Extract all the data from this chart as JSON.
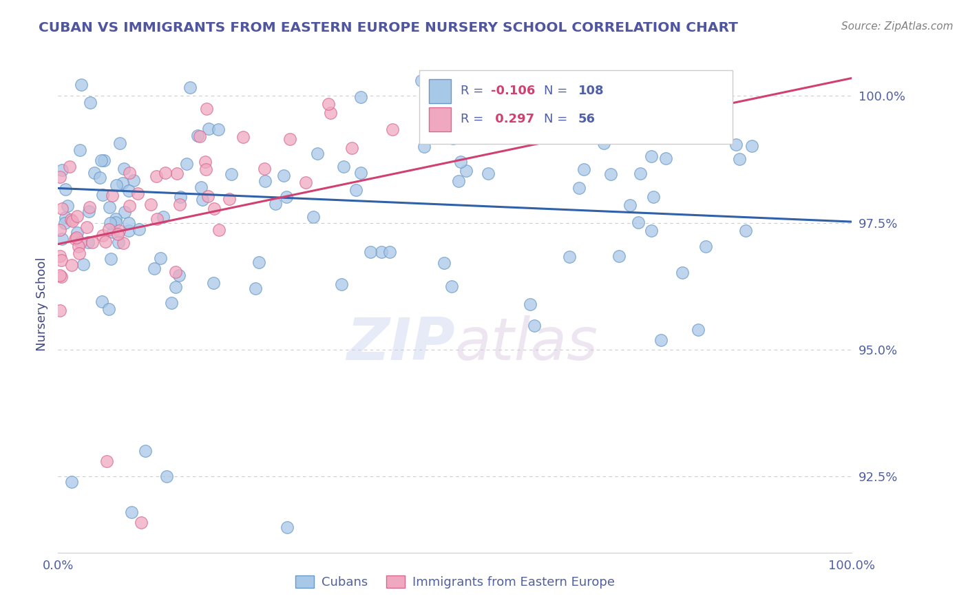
{
  "title": "CUBAN VS IMMIGRANTS FROM EASTERN EUROPE NURSERY SCHOOL CORRELATION CHART",
  "source_text": "Source: ZipAtlas.com",
  "ylabel": "Nursery School",
  "watermark_zip": "ZIP",
  "watermark_atlas": "atlas",
  "xmin": 0.0,
  "xmax": 100.0,
  "ymin": 91.0,
  "ymax": 100.8,
  "yticks": [
    92.5,
    95.0,
    97.5,
    100.0
  ],
  "ytick_labels": [
    "92.5%",
    "95.0%",
    "97.5%",
    "100.0%"
  ],
  "blue_color": "#A8C8E8",
  "pink_color": "#F0A8C0",
  "blue_edge_color": "#6898C8",
  "pink_edge_color": "#D86890",
  "blue_line_color": "#3060A8",
  "pink_line_color": "#D04070",
  "title_color": "#5055A0",
  "axis_label_color": "#404880",
  "tick_color": "#5060A0",
  "grid_color": "#CCCCCC",
  "source_color": "#808080",
  "legend_r1_color": "#D04070",
  "legend_n1_color": "#5060A8",
  "legend_r2_color": "#D04070",
  "legend_n2_color": "#5060A8",
  "legend_text_color": "#5060A8",
  "blue_R": -0.106,
  "blue_N": 108,
  "pink_R": 0.297,
  "pink_N": 56,
  "blue_trend_y0": 98.18,
  "blue_trend_y1": 97.52,
  "pink_trend_y0": 97.08,
  "pink_trend_y1": 100.35,
  "legend_label1": "Cubans",
  "legend_label2": "Immigrants from Eastern Europe"
}
